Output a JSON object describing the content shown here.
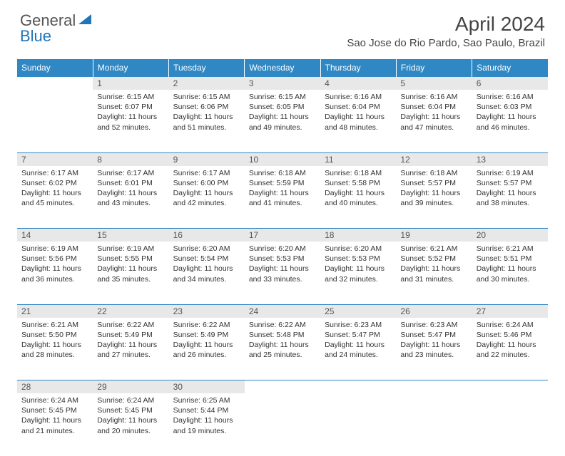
{
  "logo": {
    "word1": "General",
    "word2": "Blue"
  },
  "header": {
    "month_title": "April 2024",
    "location": "Sao Jose do Rio Pardo, Sao Paulo, Brazil"
  },
  "day_headers": [
    "Sunday",
    "Monday",
    "Tuesday",
    "Wednesday",
    "Thursday",
    "Friday",
    "Saturday"
  ],
  "colors": {
    "accent": "#2f87c4",
    "logo_blue": "#2075b9",
    "daybar_bg": "#e8e8e8",
    "text": "#333333"
  },
  "weeks": [
    {
      "nums": [
        "",
        "1",
        "2",
        "3",
        "4",
        "5",
        "6"
      ],
      "cells": [
        null,
        {
          "sunrise": "Sunrise: 6:15 AM",
          "sunset": "Sunset: 6:07 PM",
          "day1": "Daylight: 11 hours",
          "day2": "and 52 minutes."
        },
        {
          "sunrise": "Sunrise: 6:15 AM",
          "sunset": "Sunset: 6:06 PM",
          "day1": "Daylight: 11 hours",
          "day2": "and 51 minutes."
        },
        {
          "sunrise": "Sunrise: 6:15 AM",
          "sunset": "Sunset: 6:05 PM",
          "day1": "Daylight: 11 hours",
          "day2": "and 49 minutes."
        },
        {
          "sunrise": "Sunrise: 6:16 AM",
          "sunset": "Sunset: 6:04 PM",
          "day1": "Daylight: 11 hours",
          "day2": "and 48 minutes."
        },
        {
          "sunrise": "Sunrise: 6:16 AM",
          "sunset": "Sunset: 6:04 PM",
          "day1": "Daylight: 11 hours",
          "day2": "and 47 minutes."
        },
        {
          "sunrise": "Sunrise: 6:16 AM",
          "sunset": "Sunset: 6:03 PM",
          "day1": "Daylight: 11 hours",
          "day2": "and 46 minutes."
        }
      ]
    },
    {
      "nums": [
        "7",
        "8",
        "9",
        "10",
        "11",
        "12",
        "13"
      ],
      "cells": [
        {
          "sunrise": "Sunrise: 6:17 AM",
          "sunset": "Sunset: 6:02 PM",
          "day1": "Daylight: 11 hours",
          "day2": "and 45 minutes."
        },
        {
          "sunrise": "Sunrise: 6:17 AM",
          "sunset": "Sunset: 6:01 PM",
          "day1": "Daylight: 11 hours",
          "day2": "and 43 minutes."
        },
        {
          "sunrise": "Sunrise: 6:17 AM",
          "sunset": "Sunset: 6:00 PM",
          "day1": "Daylight: 11 hours",
          "day2": "and 42 minutes."
        },
        {
          "sunrise": "Sunrise: 6:18 AM",
          "sunset": "Sunset: 5:59 PM",
          "day1": "Daylight: 11 hours",
          "day2": "and 41 minutes."
        },
        {
          "sunrise": "Sunrise: 6:18 AM",
          "sunset": "Sunset: 5:58 PM",
          "day1": "Daylight: 11 hours",
          "day2": "and 40 minutes."
        },
        {
          "sunrise": "Sunrise: 6:18 AM",
          "sunset": "Sunset: 5:57 PM",
          "day1": "Daylight: 11 hours",
          "day2": "and 39 minutes."
        },
        {
          "sunrise": "Sunrise: 6:19 AM",
          "sunset": "Sunset: 5:57 PM",
          "day1": "Daylight: 11 hours",
          "day2": "and 38 minutes."
        }
      ]
    },
    {
      "nums": [
        "14",
        "15",
        "16",
        "17",
        "18",
        "19",
        "20"
      ],
      "cells": [
        {
          "sunrise": "Sunrise: 6:19 AM",
          "sunset": "Sunset: 5:56 PM",
          "day1": "Daylight: 11 hours",
          "day2": "and 36 minutes."
        },
        {
          "sunrise": "Sunrise: 6:19 AM",
          "sunset": "Sunset: 5:55 PM",
          "day1": "Daylight: 11 hours",
          "day2": "and 35 minutes."
        },
        {
          "sunrise": "Sunrise: 6:20 AM",
          "sunset": "Sunset: 5:54 PM",
          "day1": "Daylight: 11 hours",
          "day2": "and 34 minutes."
        },
        {
          "sunrise": "Sunrise: 6:20 AM",
          "sunset": "Sunset: 5:53 PM",
          "day1": "Daylight: 11 hours",
          "day2": "and 33 minutes."
        },
        {
          "sunrise": "Sunrise: 6:20 AM",
          "sunset": "Sunset: 5:53 PM",
          "day1": "Daylight: 11 hours",
          "day2": "and 32 minutes."
        },
        {
          "sunrise": "Sunrise: 6:21 AM",
          "sunset": "Sunset: 5:52 PM",
          "day1": "Daylight: 11 hours",
          "day2": "and 31 minutes."
        },
        {
          "sunrise": "Sunrise: 6:21 AM",
          "sunset": "Sunset: 5:51 PM",
          "day1": "Daylight: 11 hours",
          "day2": "and 30 minutes."
        }
      ]
    },
    {
      "nums": [
        "21",
        "22",
        "23",
        "24",
        "25",
        "26",
        "27"
      ],
      "cells": [
        {
          "sunrise": "Sunrise: 6:21 AM",
          "sunset": "Sunset: 5:50 PM",
          "day1": "Daylight: 11 hours",
          "day2": "and 28 minutes."
        },
        {
          "sunrise": "Sunrise: 6:22 AM",
          "sunset": "Sunset: 5:49 PM",
          "day1": "Daylight: 11 hours",
          "day2": "and 27 minutes."
        },
        {
          "sunrise": "Sunrise: 6:22 AM",
          "sunset": "Sunset: 5:49 PM",
          "day1": "Daylight: 11 hours",
          "day2": "and 26 minutes."
        },
        {
          "sunrise": "Sunrise: 6:22 AM",
          "sunset": "Sunset: 5:48 PM",
          "day1": "Daylight: 11 hours",
          "day2": "and 25 minutes."
        },
        {
          "sunrise": "Sunrise: 6:23 AM",
          "sunset": "Sunset: 5:47 PM",
          "day1": "Daylight: 11 hours",
          "day2": "and 24 minutes."
        },
        {
          "sunrise": "Sunrise: 6:23 AM",
          "sunset": "Sunset: 5:47 PM",
          "day1": "Daylight: 11 hours",
          "day2": "and 23 minutes."
        },
        {
          "sunrise": "Sunrise: 6:24 AM",
          "sunset": "Sunset: 5:46 PM",
          "day1": "Daylight: 11 hours",
          "day2": "and 22 minutes."
        }
      ]
    },
    {
      "nums": [
        "28",
        "29",
        "30",
        "",
        "",
        "",
        ""
      ],
      "cells": [
        {
          "sunrise": "Sunrise: 6:24 AM",
          "sunset": "Sunset: 5:45 PM",
          "day1": "Daylight: 11 hours",
          "day2": "and 21 minutes."
        },
        {
          "sunrise": "Sunrise: 6:24 AM",
          "sunset": "Sunset: 5:45 PM",
          "day1": "Daylight: 11 hours",
          "day2": "and 20 minutes."
        },
        {
          "sunrise": "Sunrise: 6:25 AM",
          "sunset": "Sunset: 5:44 PM",
          "day1": "Daylight: 11 hours",
          "day2": "and 19 minutes."
        },
        null,
        null,
        null,
        null
      ]
    }
  ]
}
